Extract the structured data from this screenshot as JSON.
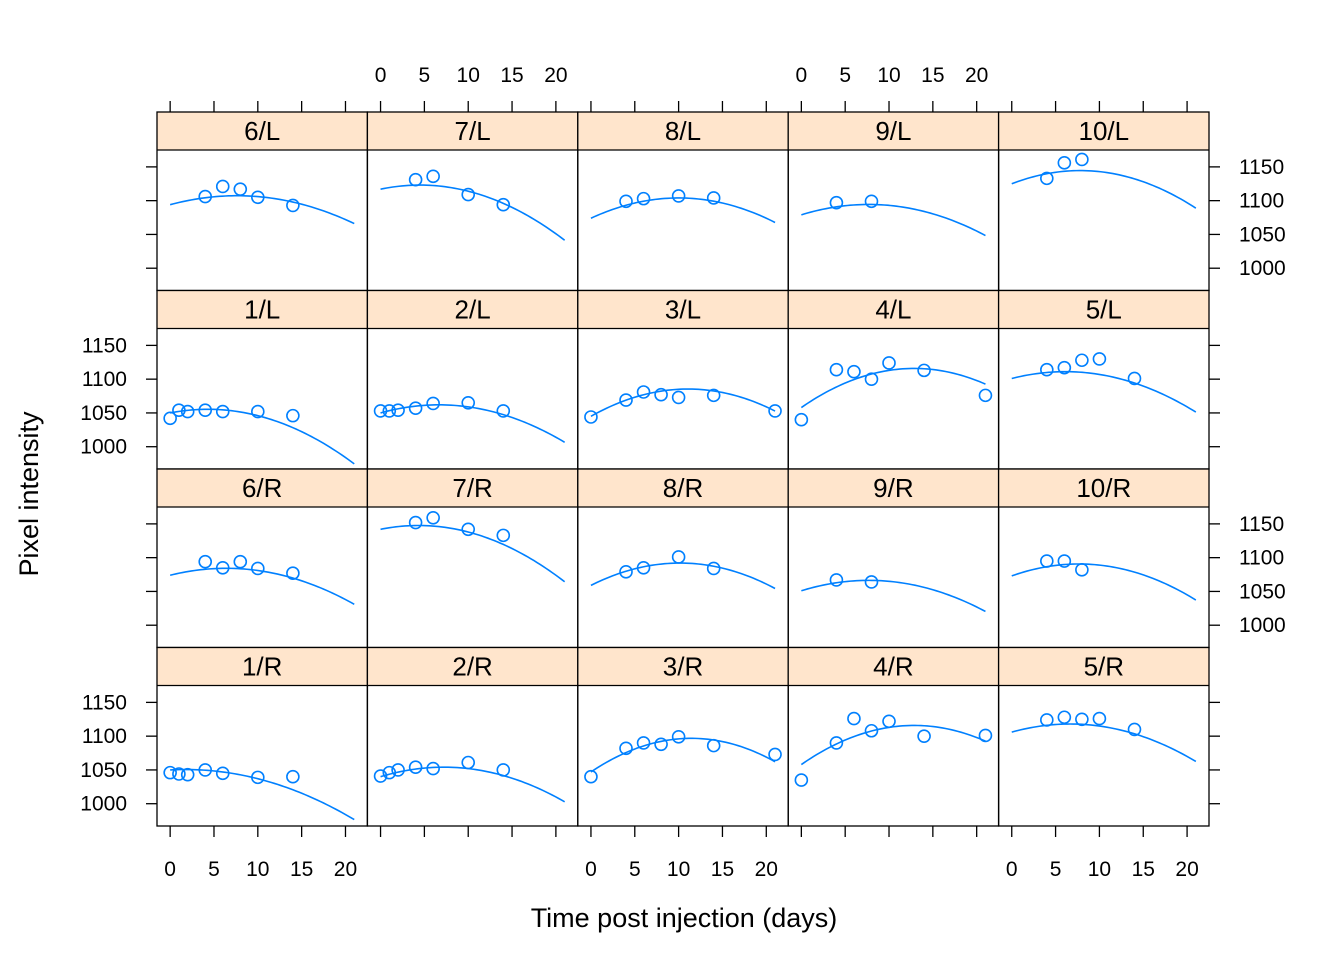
{
  "chart_data": {
    "type": "scatter",
    "layout": {
      "columns": 5,
      "rows": 4
    },
    "xlabel": "Time post injection (days)",
    "ylabel": "Pixel intensity",
    "xlim": [
      -1.5,
      22.5
    ],
    "ylim": [
      967,
      1175
    ],
    "x_ticks": [
      0,
      5,
      10,
      15,
      20
    ],
    "y_ticks": [
      1000,
      1050,
      1100,
      1150
    ],
    "colors": {
      "points": "#0080ff",
      "curve": "#0080ff",
      "strip": "#ffe5cc",
      "frame": "#000000"
    },
    "panels": [
      {
        "label": "6/L",
        "x": [
          4,
          6,
          8,
          10,
          14
        ],
        "y": [
          1106,
          1121,
          1117,
          1105,
          1093
        ],
        "curve": {
          "a": 1094,
          "b": 3.5,
          "c": -0.23,
          "x_range": [
            0,
            21
          ]
        }
      },
      {
        "label": "7/L",
        "x": [
          4,
          6,
          10,
          14
        ],
        "y": [
          1131,
          1136,
          1109,
          1094
        ],
        "curve": {
          "a": 1117,
          "b": 2.7,
          "c": -0.3,
          "x_range": [
            0,
            21
          ]
        }
      },
      {
        "label": "8/L",
        "x": [
          4,
          6,
          10,
          14
        ],
        "y": [
          1099,
          1103,
          1107,
          1104
        ],
        "curve": {
          "a": 1074,
          "b": 6.0,
          "c": -0.3,
          "x_range": [
            0,
            21
          ]
        }
      },
      {
        "label": "9/L",
        "x": [
          4,
          8
        ],
        "y": [
          1097,
          1099
        ],
        "curve": {
          "a": 1079,
          "b": 4.0,
          "c": -0.26,
          "x_range": [
            0,
            21
          ]
        }
      },
      {
        "label": "10/L",
        "x": [
          4,
          6,
          8
        ],
        "y": [
          1133,
          1156,
          1161
        ],
        "curve": {
          "a": 1125,
          "b": 5.0,
          "c": -0.32,
          "x_range": [
            0,
            21
          ]
        }
      },
      {
        "label": "1/L",
        "x": [
          0,
          1,
          2,
          4,
          6,
          10,
          14
        ],
        "y": [
          1042,
          1054,
          1052,
          1054,
          1052,
          1052,
          1046
        ],
        "curve": {
          "a": 1050,
          "b": 2.5,
          "c": -0.29,
          "x_range": [
            0,
            21
          ]
        }
      },
      {
        "label": "2/L",
        "x": [
          0,
          1,
          2,
          4,
          6,
          10,
          14
        ],
        "y": [
          1053,
          1053,
          1054,
          1057,
          1064,
          1065,
          1053
        ],
        "curve": {
          "a": 1050,
          "b": 3.6,
          "c": -0.27,
          "x_range": [
            0,
            21
          ]
        }
      },
      {
        "label": "3/L",
        "x": [
          0,
          4,
          6,
          8,
          10,
          14,
          21
        ],
        "y": [
          1044,
          1069,
          1081,
          1077,
          1073,
          1076,
          1053
        ],
        "curve": {
          "a": 1045,
          "b": 7.3,
          "c": -0.33,
          "x_range": [
            0,
            21
          ]
        }
      },
      {
        "label": "4/L",
        "x": [
          0,
          4,
          6,
          8,
          10,
          14,
          21
        ],
        "y": [
          1040,
          1114,
          1111,
          1100,
          1124,
          1113,
          1076
        ],
        "curve": {
          "a": 1058,
          "b": 9.0,
          "c": -0.35,
          "x_range": [
            0,
            21
          ]
        }
      },
      {
        "label": "5/L",
        "x": [
          4,
          6,
          8,
          10,
          14
        ],
        "y": [
          1114,
          1117,
          1128,
          1130,
          1101
        ],
        "curve": {
          "a": 1101,
          "b": 3.3,
          "c": -0.27,
          "x_range": [
            0,
            21
          ]
        }
      },
      {
        "label": "6/R",
        "x": [
          4,
          6,
          8,
          10,
          14
        ],
        "y": [
          1094,
          1085,
          1094,
          1084,
          1077
        ],
        "curve": {
          "a": 1074,
          "b": 3.2,
          "c": -0.25,
          "x_range": [
            0,
            21
          ]
        }
      },
      {
        "label": "7/R",
        "x": [
          4,
          6,
          10,
          14
        ],
        "y": [
          1152,
          1159,
          1142,
          1133
        ],
        "curve": {
          "a": 1142,
          "b": 2.6,
          "c": -0.3,
          "x_range": [
            0,
            21
          ]
        }
      },
      {
        "label": "8/R",
        "x": [
          4,
          6,
          10,
          14
        ],
        "y": [
          1079,
          1085,
          1101,
          1084
        ],
        "curve": {
          "a": 1059,
          "b": 6.5,
          "c": -0.32,
          "x_range": [
            0,
            21
          ]
        }
      },
      {
        "label": "9/R",
        "x": [
          4,
          8
        ],
        "y": [
          1067,
          1064
        ],
        "curve": {
          "a": 1051,
          "b": 4.0,
          "c": -0.26,
          "x_range": [
            0,
            21
          ]
        }
      },
      {
        "label": "10/R",
        "x": [
          4,
          6,
          8
        ],
        "y": [
          1095,
          1095,
          1082
        ],
        "curve": {
          "a": 1073,
          "b": 4.6,
          "c": -0.3,
          "x_range": [
            0,
            21
          ]
        }
      },
      {
        "label": "1/R",
        "x": [
          0,
          1,
          2,
          4,
          6,
          10,
          14
        ],
        "y": [
          1046,
          1044,
          1043,
          1050,
          1045,
          1039,
          1040
        ],
        "curve": {
          "a": 1050,
          "b": 0.7,
          "c": -0.2,
          "x_range": [
            0,
            21
          ]
        }
      },
      {
        "label": "2/R",
        "x": [
          0,
          1,
          2,
          4,
          6,
          10,
          14
        ],
        "y": [
          1041,
          1046,
          1050,
          1054,
          1052,
          1061,
          1050
        ],
        "curve": {
          "a": 1040,
          "b": 3.9,
          "c": -0.27,
          "x_range": [
            0,
            21
          ]
        }
      },
      {
        "label": "3/R",
        "x": [
          0,
          4,
          6,
          8,
          10,
          14,
          21
        ],
        "y": [
          1040,
          1082,
          1090,
          1088,
          1099,
          1086,
          1073
        ],
        "curve": {
          "a": 1047,
          "b": 8.7,
          "c": -0.38,
          "x_range": [
            0,
            21
          ]
        }
      },
      {
        "label": "4/R",
        "x": [
          0,
          4,
          6,
          8,
          10,
          14,
          21
        ],
        "y": [
          1035,
          1090,
          1126,
          1108,
          1122,
          1100,
          1101
        ],
        "curve": {
          "a": 1058,
          "b": 9.0,
          "c": -0.35,
          "x_range": [
            0,
            21
          ]
        }
      },
      {
        "label": "5/R",
        "x": [
          4,
          6,
          8,
          10,
          14
        ],
        "y": [
          1124,
          1128,
          1125,
          1126,
          1110
        ],
        "curve": {
          "a": 1106,
          "b": 3.6,
          "c": -0.27,
          "x_range": [
            0,
            21
          ]
        }
      }
    ]
  }
}
